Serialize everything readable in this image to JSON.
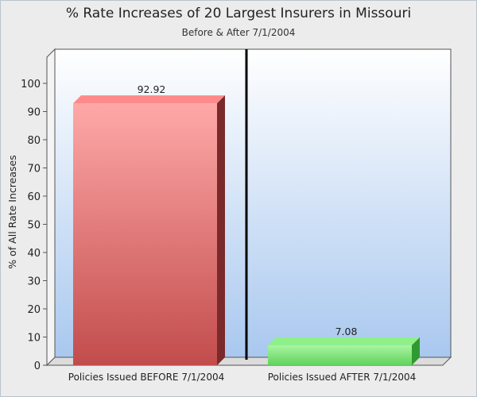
{
  "chart_data": {
    "type": "bar",
    "title": "% Rate Increases of 20 Largest Insurers in Missouri",
    "subtitle": "Before & After 7/1/2004",
    "ylabel": "% of All Rate Increases",
    "xlabel": "",
    "ylim": [
      0,
      100
    ],
    "yticks": [
      0,
      10,
      20,
      30,
      40,
      50,
      60,
      70,
      80,
      90,
      100
    ],
    "grid": false,
    "legend": "none",
    "categories": [
      "Policies Issued BEFORE 7/1/2004",
      "Policies Issued AFTER 7/1/2004"
    ],
    "values": [
      92.92,
      7.08
    ],
    "data_labels": [
      "92.92",
      "7.08"
    ],
    "colors": [
      "#d9534f",
      "#5cd65c"
    ],
    "background_gradient": [
      "#ffffff",
      "#a9c8ef"
    ]
  }
}
